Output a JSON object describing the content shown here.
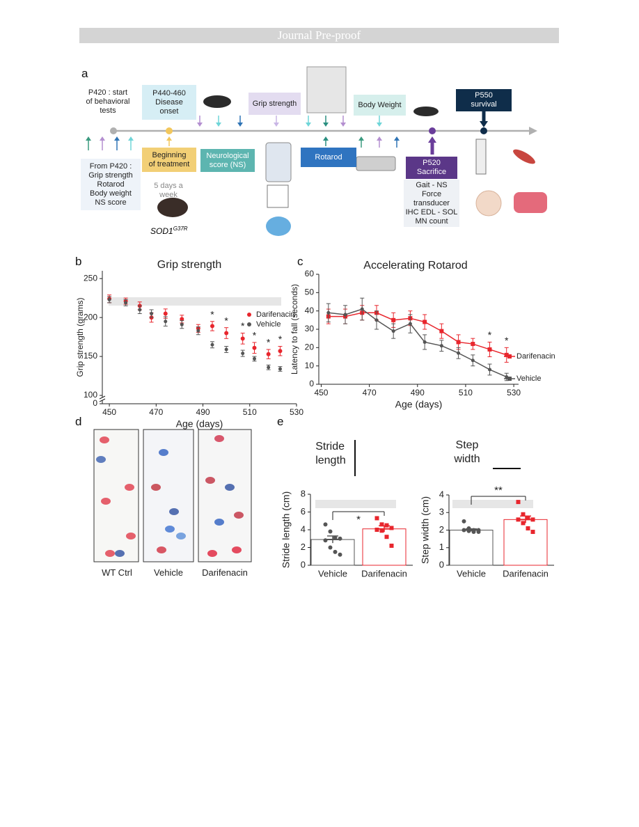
{
  "header": {
    "banner": "Journal Pre-proof"
  },
  "panel_letters": [
    "a",
    "b",
    "c",
    "d",
    "e"
  ],
  "panel_a": {
    "boxes": [
      "P420 : start\nof behavioral\ntests",
      "P440-460\nDisease\nonset",
      "Grip strength",
      "Body Weight",
      "P550\nsurvival",
      "From P420 :\nGrip strength\nRotarod\nBody weight\nNS score",
      "Beginning\nof treatment",
      "Neurological\nscore (NS)",
      "Rotarod",
      "P520\nSacrifice",
      "Gait - NS\nForce\ntransducer\nIHC EDL - SOL\nMN count"
    ],
    "schedule": "5 days a\nweek",
    "strain": "SOD1",
    "strain_sup": "G37R"
  },
  "chart_data": [
    {
      "type": "scatter",
      "title": "Grip strength",
      "x_label": "Age (days)",
      "y_label": "Grip strength (grams)",
      "xlim": [
        447,
        530
      ],
      "xticks": [
        450,
        470,
        490,
        510,
        530
      ],
      "ylim": [
        0,
        260
      ],
      "y_break": [
        0,
        100
      ],
      "yticks": [
        0,
        100,
        150,
        200,
        250
      ],
      "series": [
        {
          "name": "Darifenacin",
          "color": "#e8262d",
          "x": [
            450,
            457,
            463,
            468,
            474,
            481,
            488,
            494,
            500,
            507,
            512,
            518,
            523
          ],
          "values": [
            224,
            221,
            215,
            200,
            205,
            198,
            186,
            189,
            180,
            173,
            161,
            153,
            157
          ],
          "errors": [
            5,
            4,
            5,
            6,
            6,
            5,
            5,
            6,
            7,
            7,
            7,
            6,
            6
          ]
        },
        {
          "name": "Vehicle",
          "color": "#555555",
          "x": [
            450,
            457,
            463,
            468,
            474,
            481,
            488,
            494,
            500,
            507,
            512,
            518,
            523
          ],
          "values": [
            223,
            219,
            210,
            205,
            195,
            191,
            183,
            165,
            159,
            154,
            147,
            136,
            134
          ],
          "errors": [
            4,
            4,
            5,
            5,
            6,
            5,
            5,
            4,
            4,
            4,
            3,
            3,
            3
          ]
        }
      ],
      "significance": [
        {
          "x": 494,
          "label": "*"
        },
        {
          "x": 500,
          "label": "*"
        },
        {
          "x": 507,
          "label": "*"
        },
        {
          "x": 512,
          "label": "*"
        },
        {
          "x": 518,
          "label": "*"
        },
        {
          "x": 523,
          "label": "*"
        }
      ]
    },
    {
      "type": "line",
      "title": "Accelerating Rotarod",
      "x_label": "Age (days)",
      "y_label": "Latency to fall (seconds)",
      "xlim": [
        449,
        532
      ],
      "xticks": [
        450,
        470,
        490,
        510,
        530
      ],
      "ylim": [
        0,
        60
      ],
      "yticks": [
        0,
        10,
        20,
        30,
        40,
        50,
        60
      ],
      "series": [
        {
          "name": "Darifenacin",
          "color": "#e8262d",
          "x": [
            453,
            460,
            467,
            473,
            480,
            487,
            493,
            500,
            507,
            513,
            520,
            527
          ],
          "values": [
            37,
            37,
            39,
            39,
            35,
            36,
            34,
            29,
            23,
            22,
            19,
            16
          ],
          "errors": [
            4,
            4,
            4,
            4,
            4,
            4,
            4,
            4,
            4,
            3,
            4,
            4
          ]
        },
        {
          "name": "Vehicle",
          "color": "#555555",
          "x": [
            453,
            460,
            467,
            473,
            480,
            487,
            493,
            500,
            507,
            513,
            520,
            527
          ],
          "values": [
            39,
            38,
            41,
            35,
            29,
            33,
            23,
            21,
            17,
            13,
            8,
            4
          ],
          "errors": [
            5,
            5,
            6,
            5,
            4,
            5,
            4,
            3,
            3,
            3,
            3,
            2
          ]
        }
      ],
      "significance": [
        {
          "x": 520,
          "label": "*"
        },
        {
          "x": 527,
          "label": "*"
        }
      ]
    },
    {
      "type": "bar",
      "title": "Stride\nlength",
      "y_label": "Stride length (cm)",
      "categories": [
        "Vehicle",
        "Darifenacin"
      ],
      "values": [
        2.9,
        4.1
      ],
      "errors": [
        0.4,
        0.35
      ],
      "colors": [
        "#555555",
        "#e8262d"
      ],
      "points": [
        [
          4.6,
          3.8,
          3.1,
          3.0,
          2.8,
          2.0,
          1.5,
          1.2
        ],
        [
          5.3,
          4.6,
          4.5,
          4.2,
          4.0,
          3.9,
          3.2,
          2.2
        ]
      ],
      "ylim": [
        0,
        8
      ],
      "yticks": [
        0,
        2,
        4,
        6,
        8
      ],
      "significance": "*"
    },
    {
      "type": "bar",
      "title": "Step\nwidth",
      "y_label": "Step width (cm)",
      "categories": [
        "Vehicle",
        "Darifenacin"
      ],
      "values": [
        2.0,
        2.6
      ],
      "errors": [
        0.07,
        0.2
      ],
      "colors": [
        "#555555",
        "#e8262d"
      ],
      "points": [
        [
          2.5,
          2.1,
          2.0,
          2.0,
          2.0,
          1.95,
          1.9,
          1.9
        ],
        [
          3.6,
          2.9,
          2.7,
          2.6,
          2.6,
          2.4,
          2.1,
          1.9
        ]
      ],
      "ylim": [
        0,
        4
      ],
      "yticks": [
        0,
        1,
        2,
        3,
        4
      ],
      "significance": "**"
    }
  ],
  "panel_d": {
    "labels": [
      "WT Ctrl",
      "Vehicle",
      "Darifenacin"
    ]
  }
}
